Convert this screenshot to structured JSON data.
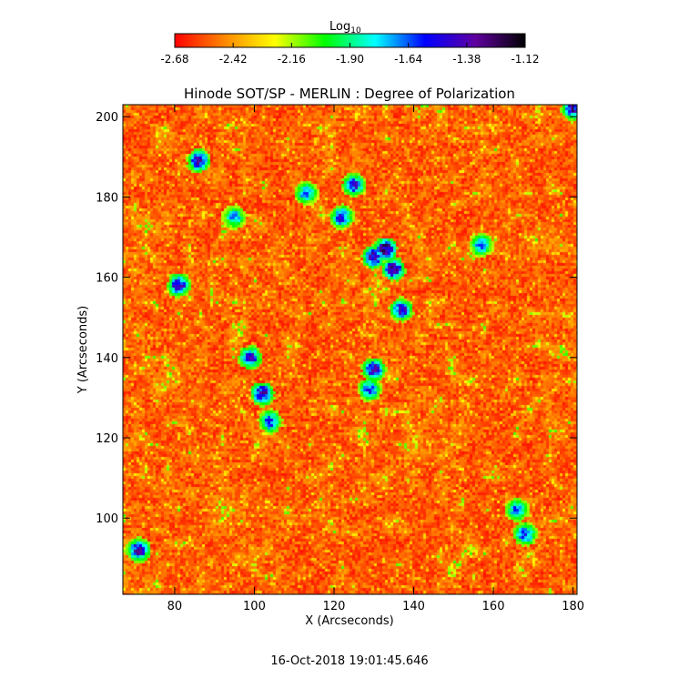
{
  "chart_data": {
    "type": "heatmap",
    "title": "Hinode SOT/SP - MERLIN : Degree of Polarization",
    "xlabel": "X (Arcseconds)",
    "ylabel": "Y (Arcseconds)",
    "xlim": [
      67,
      181
    ],
    "ylim": [
      81,
      203
    ],
    "x_ticks": [
      80,
      100,
      120,
      140,
      160,
      180
    ],
    "y_ticks": [
      100,
      120,
      140,
      160,
      180,
      200
    ],
    "colorbar": {
      "label": "Log",
      "label_subscript": "10",
      "range": [
        -2.68,
        -1.12
      ],
      "ticks": [
        "-2.68",
        "-2.42",
        "-2.16",
        "-1.90",
        "-1.64",
        "-1.38",
        "-1.12"
      ],
      "tick_values": [
        -2.68,
        -2.42,
        -2.16,
        -1.9,
        -1.64,
        -1.38,
        -1.12
      ],
      "colormap": [
        "#ff0000",
        "#ff8800",
        "#ffff00",
        "#00ff00",
        "#00ffff",
        "#0000ff",
        "#6000a0",
        "#000000"
      ]
    },
    "grid": false,
    "strong_polarization_patches": [
      {
        "x": 86,
        "y": 189,
        "v": -1.3
      },
      {
        "x": 81,
        "y": 158,
        "v": -1.35
      },
      {
        "x": 71,
        "y": 92,
        "v": -1.3
      },
      {
        "x": 102,
        "y": 131,
        "v": -1.25
      },
      {
        "x": 99,
        "y": 140,
        "v": -1.4
      },
      {
        "x": 104,
        "y": 124,
        "v": -1.5
      },
      {
        "x": 125,
        "y": 183,
        "v": -1.4
      },
      {
        "x": 122,
        "y": 175,
        "v": -1.45
      },
      {
        "x": 133,
        "y": 167,
        "v": -1.2
      },
      {
        "x": 135,
        "y": 162,
        "v": -1.25
      },
      {
        "x": 130,
        "y": 165,
        "v": -1.3
      },
      {
        "x": 137,
        "y": 152,
        "v": -1.4
      },
      {
        "x": 130,
        "y": 137,
        "v": -1.35
      },
      {
        "x": 129,
        "y": 132,
        "v": -1.5
      },
      {
        "x": 113,
        "y": 181,
        "v": -1.6
      },
      {
        "x": 168,
        "y": 96,
        "v": -1.5
      },
      {
        "x": 166,
        "y": 102,
        "v": -1.55
      },
      {
        "x": 157,
        "y": 168,
        "v": -1.6
      },
      {
        "x": 180,
        "y": 202,
        "v": -1.35
      },
      {
        "x": 95,
        "y": 175,
        "v": -1.65
      }
    ]
  },
  "footer": {
    "timestamp": "16-Oct-2018 19:01:45.646"
  }
}
